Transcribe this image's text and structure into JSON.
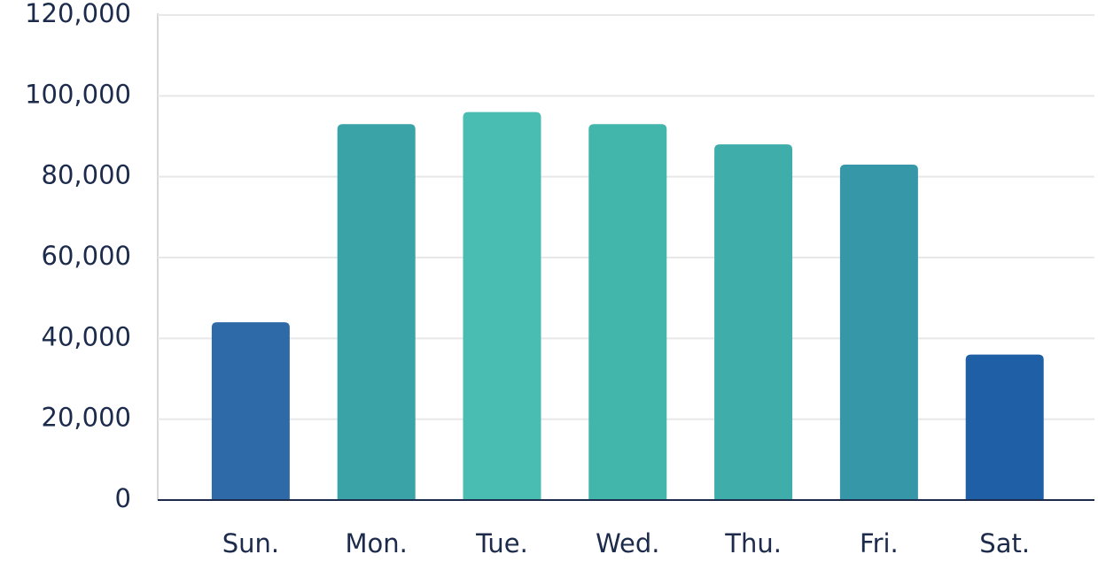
{
  "chart_data": {
    "type": "bar",
    "categories": [
      "Sun.",
      "Mon.",
      "Tue.",
      "Wed.",
      "Thu.",
      "Fri.",
      "Sat."
    ],
    "values": [
      44000,
      93000,
      96000,
      93000,
      88000,
      83000,
      36000
    ],
    "colors": [
      "#2f6aa8",
      "#3aa3a8",
      "#49bdb2",
      "#43b6ab",
      "#3fada9",
      "#3597a8",
      "#1f5fa6"
    ],
    "ylim": [
      0,
      120000
    ],
    "yticks": [
      0,
      {
        "value": 20000,
        "label": "20,000"
      },
      {
        "value": 40000,
        "label": "40,000"
      },
      {
        "value": 60000,
        "label": "60,000"
      },
      {
        "value": 80000,
        "label": "80,000"
      },
      {
        "value": 100000,
        "label": "100,000"
      },
      {
        "value": 120000,
        "label": "120,000"
      }
    ],
    "grid": true
  }
}
